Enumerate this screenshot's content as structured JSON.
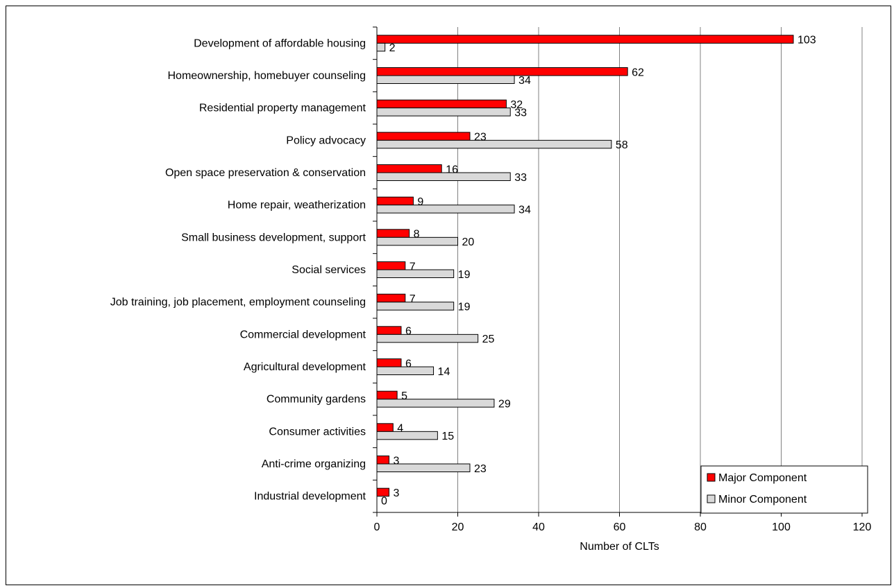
{
  "chart_data": {
    "type": "bar",
    "orientation": "horizontal",
    "categories": [
      "Development of affordable housing",
      "Homeownership, homebuyer counseling",
      "Residential property management",
      "Policy advocacy",
      "Open space preservation & conservation",
      "Home repair, weatherization",
      "Small business development, support",
      "Social services",
      "Job training, job placement, employment counseling",
      "Commercial development",
      "Agricultural development",
      "Community gardens",
      "Consumer activities",
      "Anti-crime organizing",
      "Industrial development"
    ],
    "series": [
      {
        "name": "Major Component",
        "color": "#ff0000",
        "values": [
          103,
          62,
          32,
          23,
          16,
          9,
          8,
          7,
          7,
          6,
          6,
          5,
          4,
          3,
          3
        ]
      },
      {
        "name": "Minor Component",
        "color": "#d9d9d9",
        "values": [
          2,
          34,
          33,
          58,
          33,
          34,
          20,
          19,
          19,
          25,
          14,
          29,
          15,
          23,
          0
        ]
      }
    ],
    "xlabel": "Number of CLTs",
    "xlim": [
      0,
      120
    ],
    "xticks": [
      "0",
      "20",
      "40",
      "60",
      "80",
      "100",
      "120"
    ],
    "grid": "vertical",
    "legend_position": "bottom-right",
    "data_labels": true
  }
}
